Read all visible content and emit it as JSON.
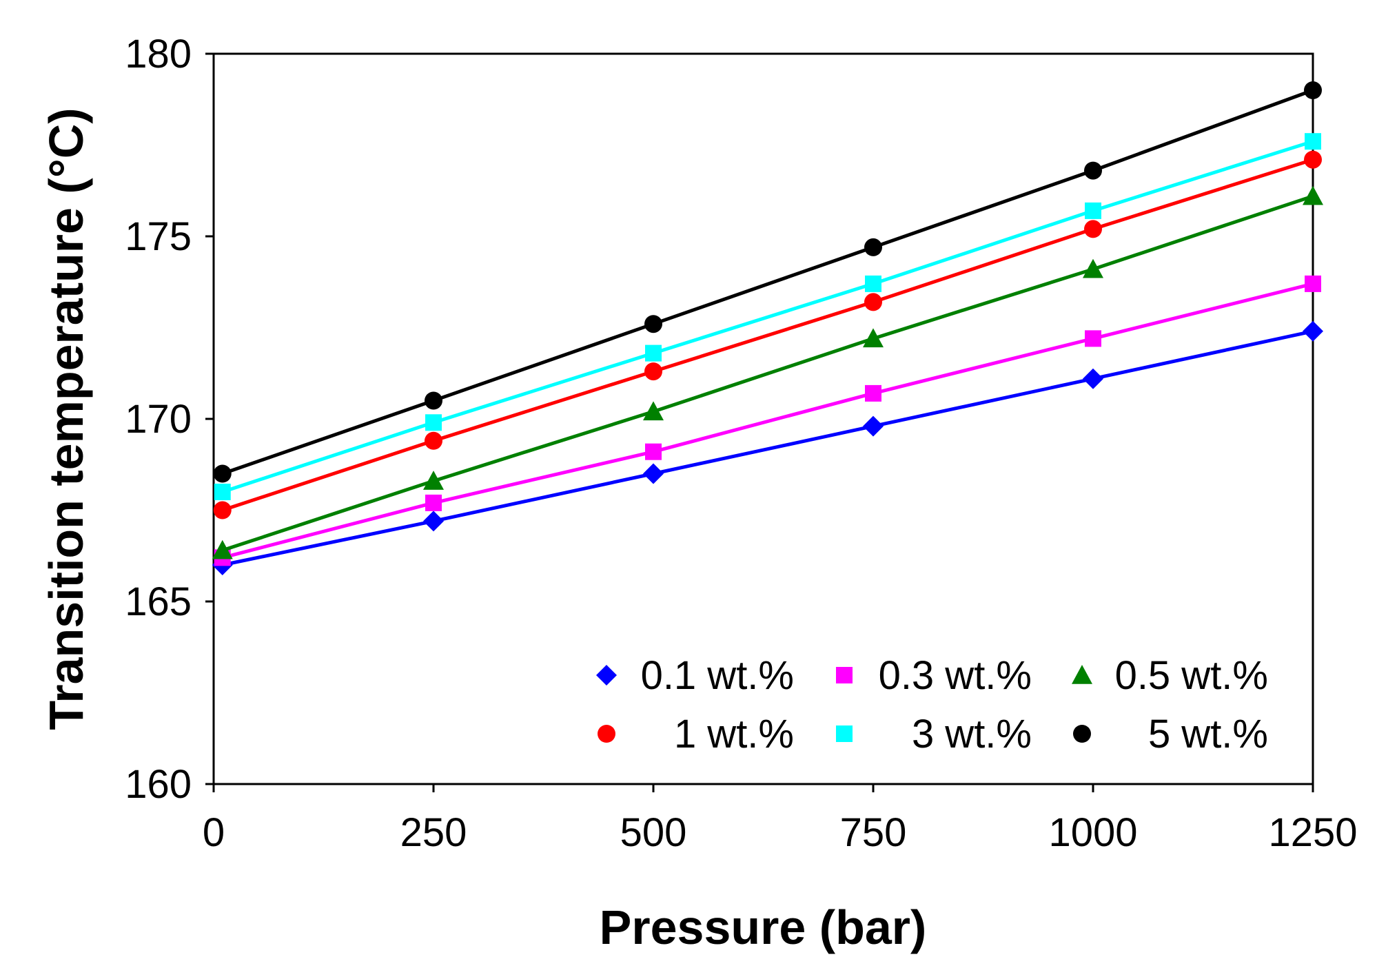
{
  "chart_data": {
    "type": "line",
    "title": "",
    "xlabel": "Pressure (bar)",
    "ylabel": "Transition temperature (°C)",
    "xlim": [
      0,
      1250
    ],
    "ylim": [
      160,
      180
    ],
    "xticks": [
      0,
      250,
      500,
      750,
      1000,
      1250
    ],
    "xtick_labels": [
      "0",
      "250",
      "500",
      "750",
      "1000",
      "1250"
    ],
    "yticks": [
      160,
      165,
      170,
      175,
      180
    ],
    "ytick_labels": [
      "160",
      "165",
      "170",
      "175",
      "180"
    ],
    "grid": false,
    "legend_position": "bottom-right",
    "x": [
      10,
      250,
      500,
      750,
      1000,
      1250
    ],
    "series": [
      {
        "name": "0.1 wt.%",
        "color": "#0000FF",
        "marker": "diamond",
        "values": [
          166.0,
          167.2,
          168.5,
          169.8,
          171.1,
          172.4
        ]
      },
      {
        "name": "0.3 wt.%",
        "color": "#FF00FF",
        "marker": "square",
        "values": [
          166.2,
          167.7,
          169.1,
          170.7,
          172.2,
          173.7
        ]
      },
      {
        "name": "0.5 wt.%",
        "color": "#008000",
        "marker": "triangle",
        "values": [
          166.4,
          168.3,
          170.2,
          172.2,
          174.1,
          176.1
        ]
      },
      {
        "name": "1 wt.%",
        "color": "#FF0000",
        "marker": "circle",
        "values": [
          167.5,
          169.4,
          171.3,
          173.2,
          175.2,
          177.1
        ]
      },
      {
        "name": "3 wt.%",
        "color": "#00FFFF",
        "marker": "square",
        "values": [
          168.0,
          169.9,
          171.8,
          173.7,
          175.7,
          177.6
        ]
      },
      {
        "name": "5 wt.%",
        "color": "#000000",
        "marker": "circle",
        "values": [
          168.5,
          170.5,
          172.6,
          174.7,
          176.8,
          179.0
        ]
      }
    ]
  }
}
